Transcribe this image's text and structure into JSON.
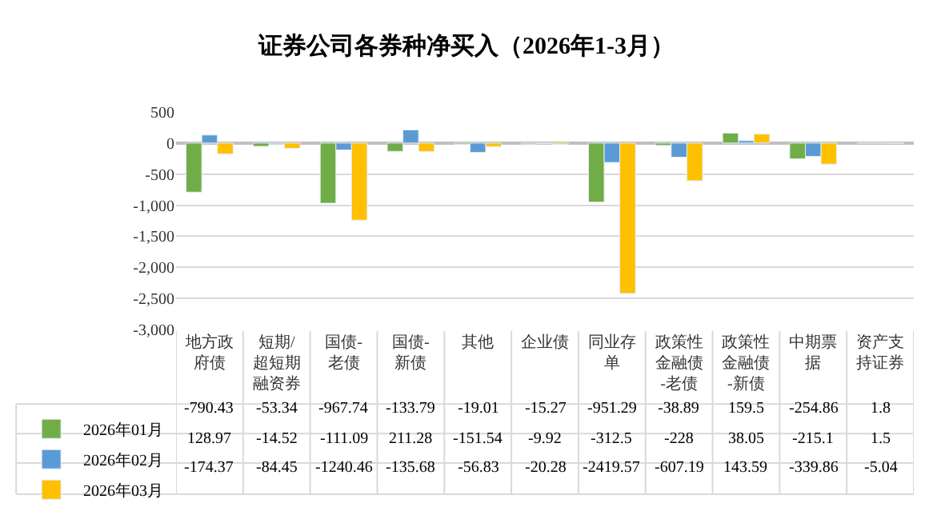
{
  "chart_data": {
    "type": "bar",
    "title": "证券公司各券种净买入（2026年1-3月）",
    "categories": [
      "地方政府债",
      "短期/超短期融资券",
      "国债-老债",
      "国债-新债",
      "其他",
      "企业债",
      "同业存单",
      "政策性金融债-老债",
      "政策性金融债-新债",
      "中期票据",
      "资产支持证券"
    ],
    "series": [
      {
        "name": "2026年01月",
        "color": "#70ad47",
        "values": [
          -790.43,
          -53.34,
          -967.74,
          -133.79,
          -19.01,
          -15.27,
          -951.29,
          -38.89,
          159.5,
          -254.86,
          1.8
        ]
      },
      {
        "name": "2026年02月",
        "color": "#5b9bd5",
        "values": [
          128.97,
          -14.52,
          -111.09,
          211.28,
          -151.54,
          -9.92,
          -312.5,
          -228,
          38.05,
          -215.1,
          1.5
        ]
      },
      {
        "name": "2026年03月",
        "color": "#ffc000",
        "values": [
          -174.37,
          -84.45,
          -1240.46,
          -135.68,
          -56.83,
          -20.28,
          -2419.57,
          -607.19,
          143.59,
          -339.86,
          -5.04
        ]
      }
    ],
    "ylim": [
      -3000,
      500
    ],
    "yticks": [
      {
        "value": -3000,
        "label": "-3,000"
      },
      {
        "value": -2500,
        "label": "-2,500"
      },
      {
        "value": -2000,
        "label": "-2,000"
      },
      {
        "value": -1500,
        "label": "-1,500"
      },
      {
        "value": -1000,
        "label": "-1,000"
      },
      {
        "value": -500,
        "label": "-500"
      },
      0,
      500
    ],
    "grid": "y",
    "legend": "bottom left",
    "data_labels": true
  }
}
